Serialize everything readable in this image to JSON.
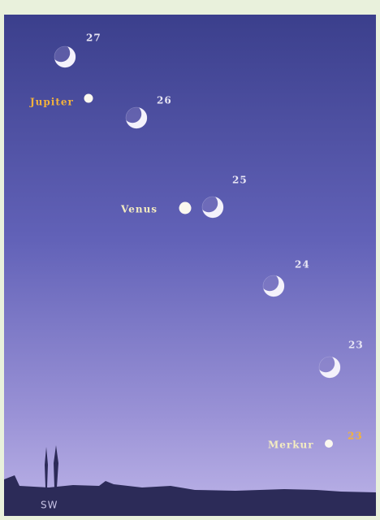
{
  "moons": [
    {
      "day": "27"
    },
    {
      "day": "26"
    },
    {
      "day": "25"
    },
    {
      "day": "24"
    },
    {
      "day": "23"
    }
  ],
  "planets": [
    {
      "name": "Jupiter"
    },
    {
      "name": "Venus"
    },
    {
      "name": "Merkur",
      "day": "23"
    }
  ],
  "direction": "SW"
}
